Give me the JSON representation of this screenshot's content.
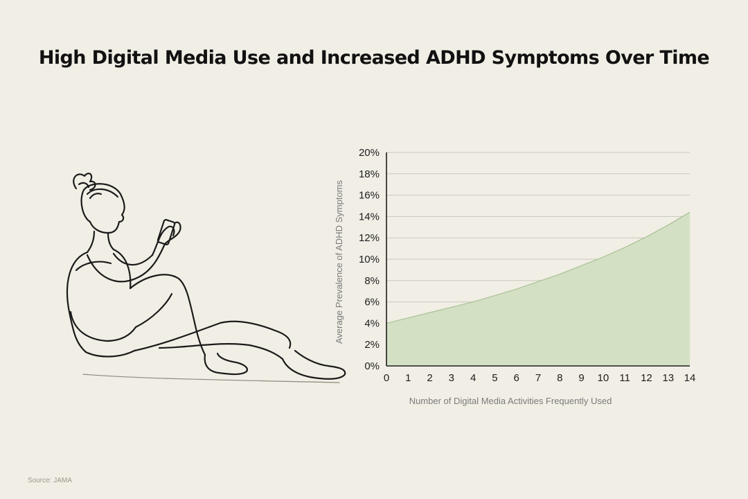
{
  "title": "High Digital Media Use and Increased ADHD Symptoms Over Time",
  "source": "Source: JAMA",
  "colors": {
    "background": "#f1eee5",
    "area_fill": "#d3e0c4",
    "area_line": "#a9c196",
    "grid": "#c9c6bd",
    "axis": "#1c1c1c"
  },
  "icons": {
    "illustration": "woman-sitting-with-phone-illustration"
  },
  "chart_data": {
    "type": "area",
    "title": "High Digital Media Use and Increased ADHD Symptoms Over Time",
    "xlabel": "Number of Digital Media Activities Frequently Used",
    "ylabel": "Average Prevalence of ADHD Symptoms",
    "x": [
      0,
      1,
      2,
      3,
      4,
      5,
      6,
      7,
      8,
      9,
      10,
      11,
      12,
      13,
      14
    ],
    "y": [
      4.0,
      4.5,
      5.0,
      5.5,
      6.0,
      6.6,
      7.2,
      7.9,
      8.6,
      9.4,
      10.2,
      11.1,
      12.1,
      13.2,
      14.4
    ],
    "y_unit": "%",
    "xlim": [
      0,
      14
    ],
    "ylim": [
      0,
      20
    ],
    "y_ticks": [
      "0%",
      "2%",
      "4%",
      "6%",
      "8%",
      "10%",
      "12%",
      "14%",
      "16%",
      "18%",
      "20%"
    ],
    "x_ticks": [
      "0",
      "1",
      "2",
      "3",
      "4",
      "5",
      "6",
      "7",
      "8",
      "9",
      "10",
      "11",
      "12",
      "13",
      "14"
    ],
    "grid": "horizontal",
    "legend": "none"
  }
}
